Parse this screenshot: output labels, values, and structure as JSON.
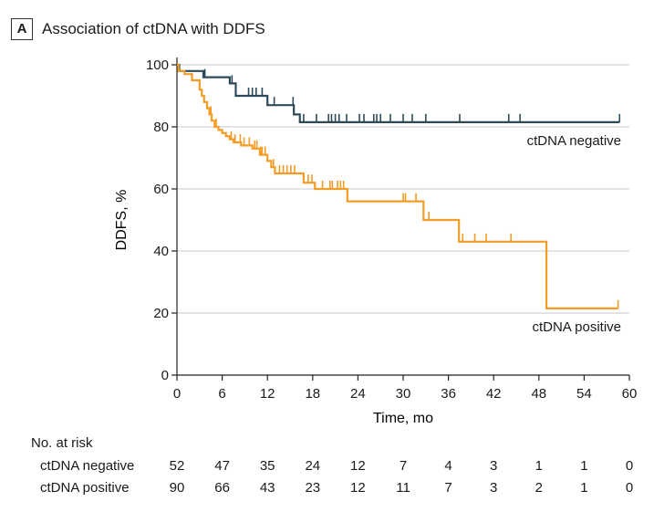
{
  "panel": {
    "letter": "A",
    "title": "Association of ctDNA with DDFS"
  },
  "chart_data": {
    "type": "line",
    "step": true,
    "xlabel": "Time, mo",
    "ylabel": "DDFS, %",
    "xlim": [
      0,
      60
    ],
    "ylim": [
      0,
      100
    ],
    "xticks": [
      0,
      6,
      12,
      18,
      24,
      30,
      36,
      42,
      48,
      54,
      60
    ],
    "yticks": [
      0,
      20,
      40,
      60,
      80,
      100
    ],
    "grid": "horizontal",
    "colors": {
      "ctDNA negative": "#2e4a5a",
      "ctDNA positive": "#f39c26"
    },
    "series": [
      {
        "name": "ctDNA negative",
        "x": [
          0,
          0.3,
          0.6,
          3.5,
          7.0,
          7.8,
          12.0,
          15.5,
          16.3,
          58.7
        ],
        "y": [
          100,
          98,
          98,
          96,
          94,
          90,
          87,
          84,
          81.5,
          81.5
        ],
        "censor_x": [
          3.7,
          7.3,
          9.5,
          10.0,
          10.5,
          11.3,
          12.9,
          15.4,
          16.8,
          18.5,
          20.1,
          20.5,
          21.0,
          21.5,
          22.5,
          24.2,
          24.8,
          26.1,
          26.5,
          27.0,
          28.3,
          30.0,
          31.2,
          33.0,
          37.5,
          44.0,
          45.5,
          58.7
        ]
      },
      {
        "name": "ctDNA positive",
        "x": [
          0,
          0.2,
          1.0,
          2.0,
          3.0,
          3.3,
          3.6,
          4.0,
          4.3,
          4.6,
          5.0,
          5.5,
          6.0,
          6.5,
          7.0,
          7.5,
          8.5,
          10.0,
          11.0,
          12.0,
          12.5,
          13.0,
          16.8,
          18.3,
          22.6,
          32.7,
          37.4,
          49.0,
          58.5
        ],
        "y": [
          100,
          98,
          97,
          95,
          92,
          90,
          88,
          86,
          84,
          82,
          80,
          79,
          78,
          77,
          76,
          75,
          74,
          73,
          71,
          69,
          67,
          65,
          62,
          60,
          56,
          50,
          43,
          21.5,
          21.5
        ],
        "censor_x": [
          4.5,
          5.2,
          7.2,
          7.7,
          8.4,
          8.9,
          9.6,
          10.3,
          10.6,
          11.1,
          11.3,
          11.7,
          12.8,
          13.6,
          14.1,
          14.6,
          15.1,
          15.6,
          17.4,
          17.9,
          19.3,
          20.3,
          20.6,
          21.3,
          21.7,
          22.1,
          30.0,
          30.3,
          31.7,
          33.4,
          37.9,
          39.5,
          41.0,
          44.3,
          58.5
        ]
      }
    ],
    "annotations": [
      {
        "text": "ctDNA negative",
        "series": "ctDNA negative"
      },
      {
        "text": "ctDNA positive",
        "series": "ctDNA positive"
      }
    ]
  },
  "risk_table": {
    "heading": "No. at risk",
    "times": [
      0,
      6,
      12,
      18,
      24,
      30,
      36,
      42,
      48,
      54,
      60
    ],
    "rows": [
      {
        "label": "ctDNA negative",
        "values": [
          "52",
          "47",
          "35",
          "24",
          "12",
          "7",
          "4",
          "3",
          "1",
          "1",
          "0"
        ]
      },
      {
        "label": "ctDNA positive",
        "values": [
          "90",
          "66",
          "43",
          "23",
          "12",
          "11",
          "7",
          "3",
          "2",
          "1",
          "0"
        ]
      }
    ]
  }
}
